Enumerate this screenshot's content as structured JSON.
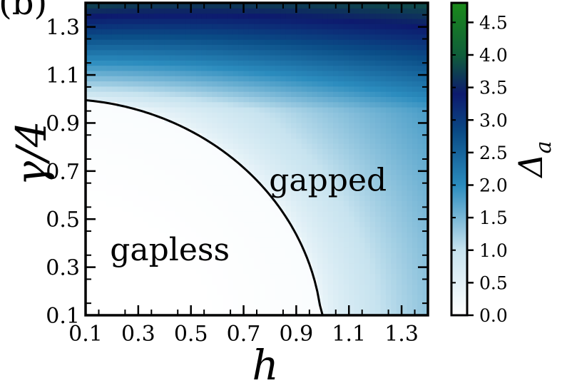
{
  "panel_label": "(b)",
  "chart_data": {
    "type": "heatmap",
    "title": "",
    "xlabel": "h",
    "ylabel": "γ/4",
    "xlim": [
      0.1,
      1.4
    ],
    "ylim": [
      0.1,
      1.4
    ],
    "x_ticks": [
      0.1,
      0.3,
      0.5,
      0.7,
      0.9,
      1.1,
      1.3
    ],
    "y_ticks": [
      0.1,
      0.3,
      0.5,
      0.7,
      0.9,
      1.1,
      1.3
    ],
    "x_tick_labels": [
      "0.1",
      "0.3",
      "0.5",
      "0.7",
      "0.9",
      "1.1",
      "1.3"
    ],
    "y_tick_labels": [
      "0.1",
      "0.3",
      "0.5",
      "0.7",
      "0.9",
      "1.1",
      "1.3"
    ],
    "colorbar": {
      "label": "Δ_a",
      "label_main": "Δ",
      "label_sub": "a",
      "range": [
        0.0,
        4.8
      ],
      "ticks": [
        0.0,
        0.5,
        1.0,
        1.5,
        2.0,
        2.5,
        3.0,
        3.5,
        4.0,
        4.5
      ],
      "tick_labels": [
        "0.0",
        "0.5",
        "1.0",
        "1.5",
        "2.0",
        "2.5",
        "3.0",
        "3.5",
        "4.0",
        "4.5"
      ],
      "colors": [
        {
          "value": 0.0,
          "color": "#ffffff"
        },
        {
          "value": 1.0,
          "color": "#c7e3ef"
        },
        {
          "value": 2.0,
          "color": "#2b8cbe"
        },
        {
          "value": 2.8,
          "color": "#0a4c86"
        },
        {
          "value": 3.4,
          "color": "#0d1a6e"
        },
        {
          "value": 4.0,
          "color": "#105e3a"
        },
        {
          "value": 4.8,
          "color": "#1a8a1a"
        }
      ]
    },
    "phase_boundary": {
      "type": "circle",
      "equation": "h^2 + (γ/4)^2 = 1"
    },
    "annotations": [
      {
        "text": "gapless",
        "x": 0.42,
        "y": 0.37
      },
      {
        "text": "gapped",
        "x": 1.02,
        "y": 0.66
      }
    ],
    "grid": false
  }
}
